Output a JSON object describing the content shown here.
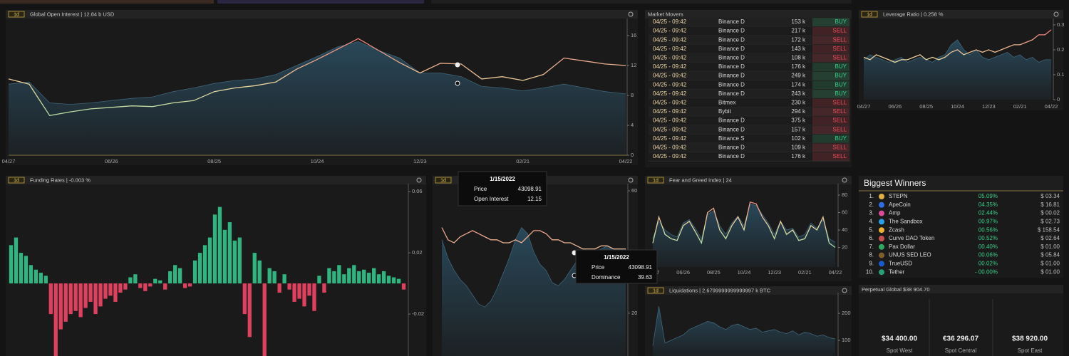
{
  "chart_data": [
    {
      "type": "line",
      "interval": "1d",
      "title": "Global Open Interest | 12.84 b USD",
      "categories": [
        "04/27",
        null,
        null,
        null,
        null,
        "06/26",
        null,
        null,
        null,
        null,
        "08/25",
        null,
        null,
        null,
        null,
        "10/24",
        null,
        null,
        null,
        null,
        "12/23",
        null,
        null,
        null,
        null,
        "02/21",
        null,
        null,
        null,
        null,
        "04/22"
      ],
      "series": [
        {
          "kind": "area",
          "color": "#2a4a5c",
          "values": [
            9.5,
            9.8,
            7.0,
            6.8,
            7.0,
            7.3,
            7.6,
            7.8,
            8.5,
            9.0,
            9.6,
            10.0,
            10.2,
            10.8,
            12.0,
            13.2,
            14.5,
            15.2,
            14.0,
            13.0,
            11.0,
            11.0,
            10.5,
            9.2,
            9.0,
            8.6,
            9.0,
            9.5,
            9.0,
            8.5,
            8.2
          ]
        },
        {
          "kind": "line",
          "gradient": [
            "#f07a7a",
            "#e8d8a0",
            "#7fe0a4"
          ],
          "values": [
            10.2,
            9.5,
            5.3,
            5.8,
            6.2,
            6.4,
            6.6,
            6.5,
            7.0,
            7.3,
            8.5,
            9.0,
            9.3,
            9.8,
            11.5,
            12.8,
            14.2,
            15.6,
            14.0,
            12.4,
            11.0,
            12.3,
            12.2,
            10.2,
            10.5,
            10.0,
            10.8,
            13.0,
            12.6,
            12.2,
            12.0
          ]
        }
      ],
      "ylim": [
        0,
        17.9
      ],
      "yticks": [
        0,
        4,
        8,
        12,
        16
      ]
    },
    {
      "type": "line",
      "interval": "1d",
      "title": "Leverage Ratio | 0.258 %",
      "categories": [
        "04/27",
        null,
        null,
        null,
        null,
        "06/26",
        null,
        null,
        null,
        null,
        "08/25",
        null,
        null,
        null,
        null,
        "10/24",
        null,
        null,
        null,
        null,
        "12/23",
        null,
        null,
        null,
        null,
        "02/21",
        null,
        null,
        null,
        null,
        "04/22"
      ],
      "series": [
        {
          "kind": "area",
          "color": "#2a4a5c",
          "values": [
            0.16,
            0.18,
            0.17,
            0.16,
            0.15,
            0.16,
            0.17,
            0.15,
            0.16,
            0.17,
            0.16,
            0.15,
            0.17,
            0.18,
            0.22,
            0.24,
            0.2,
            0.18,
            0.2,
            0.17,
            0.16,
            0.17,
            0.18,
            0.19,
            0.17,
            0.18,
            0.16,
            0.17,
            0.15,
            0.16,
            0.16
          ]
        },
        {
          "kind": "line",
          "gradient": [
            "#f07a7a",
            "#e8d8a0",
            "#7fe0a4"
          ],
          "values": [
            0.17,
            0.16,
            0.18,
            0.17,
            0.16,
            0.15,
            0.16,
            0.16,
            0.17,
            0.18,
            0.16,
            0.17,
            0.16,
            0.17,
            0.19,
            0.2,
            0.18,
            0.19,
            0.2,
            0.19,
            0.2,
            0.19,
            0.2,
            0.21,
            0.22,
            0.22,
            0.23,
            0.24,
            0.26,
            0.26,
            0.28
          ]
        }
      ],
      "ylim": [
        0,
        0.314
      ],
      "yticks": [
        0,
        0.1,
        0.2,
        0.3
      ]
    },
    {
      "type": "bar",
      "interval": "1d",
      "title": "Funding Rates | -0.003 %",
      "color": "#2fb57f",
      "negative_color": "#e0405e",
      "values": [
        0.025,
        0.03,
        0.02,
        0.018,
        0.012,
        0.009,
        0.007,
        0.005,
        -0.02,
        -0.055,
        -0.03,
        -0.025,
        -0.02,
        -0.018,
        -0.022,
        -0.016,
        -0.012,
        -0.02,
        -0.015,
        -0.01,
        -0.008,
        -0.012,
        -0.006,
        -0.004,
        0.004,
        0.006,
        -0.003,
        -0.005,
        -0.002,
        0.003,
        0.002,
        -0.004,
        0.008,
        0.012,
        0.01,
        -0.003,
        -0.002,
        0.015,
        0.02,
        0.025,
        0.03,
        0.045,
        0.05,
        0.035,
        0.04,
        0.028,
        0.03,
        -0.02,
        -0.035,
        0.02,
        0.015,
        -0.05,
        0.01,
        0.008,
        -0.006,
        0.006,
        -0.004,
        -0.012,
        -0.01,
        -0.015,
        -0.008,
        -0.018,
        0.005,
        -0.006,
        0.01,
        0.008,
        0.012,
        0.006,
        0.01,
        0.012,
        0.008,
        0.009,
        0.007,
        0.01,
        0.006,
        0.008,
        0.005,
        0.004,
        0.003,
        -0.004
      ],
      "ylim": [
        -0.0474,
        0.0633
      ],
      "yticks": [
        -0.02,
        0.02,
        0.06
      ]
    },
    {
      "type": "line",
      "interval": "1d",
      "series": [
        {
          "kind": "area",
          "color": "#2a4a5c",
          "values": [
            44,
            38,
            34,
            31,
            29,
            26,
            23,
            22,
            24,
            28,
            33,
            38,
            44,
            48,
            46,
            40,
            36,
            34,
            30,
            29,
            31,
            34,
            37,
            38,
            40,
            40,
            41,
            42,
            41,
            41,
            41
          ]
        },
        {
          "kind": "line",
          "gradient": [
            "#f07a7a",
            "#e8d8a0",
            "#7fe0a4"
          ],
          "values": [
            48,
            44,
            43,
            45,
            46,
            47,
            46,
            45,
            44,
            44,
            43,
            43,
            44,
            43,
            45,
            47,
            47,
            46,
            44,
            44,
            43,
            43,
            42,
            41,
            41,
            41,
            42,
            42,
            41,
            41,
            41
          ]
        }
      ],
      "ylim": [
        6,
        61.4
      ],
      "yticks": [
        20,
        60
      ]
    },
    {
      "type": "line",
      "interval": "1d",
      "title": "Fear and Greed Index | 24",
      "categories": [
        "04/27",
        null,
        null,
        null,
        null,
        "06/26",
        null,
        null,
        null,
        null,
        "08/25",
        null,
        null,
        null,
        null,
        "10/24",
        null,
        null,
        null,
        null,
        "12/23",
        null,
        null,
        null,
        null,
        "02/21",
        null,
        null,
        null,
        null,
        "04/22"
      ],
      "series": [
        {
          "kind": "area",
          "color": "#2a4a5c",
          "values": [
            30,
            50,
            40,
            35,
            32,
            48,
            52,
            42,
            30,
            58,
            62,
            45,
            35,
            48,
            56,
            45,
            70,
            68,
            58,
            48,
            35,
            50,
            40,
            42,
            32,
            35,
            48,
            42,
            52,
            30,
            26
          ]
        },
        {
          "kind": "line",
          "gradient": [
            "#f07a7a",
            "#e8d8a0",
            "#7fe0a4"
          ],
          "values": [
            25,
            55,
            35,
            30,
            28,
            45,
            50,
            38,
            25,
            60,
            65,
            40,
            30,
            45,
            55,
            40,
            72,
            70,
            55,
            45,
            30,
            50,
            35,
            40,
            28,
            30,
            45,
            40,
            55,
            25,
            20
          ]
        }
      ],
      "ylim": [
        -2.4,
        89.8
      ],
      "yticks": [
        20,
        40,
        60,
        80
      ]
    },
    {
      "type": "line",
      "interval": "1d",
      "title": "Liquidations | 2.6799999999999997 k BTC",
      "series": [
        {
          "kind": "area",
          "color": "#2a4a5c",
          "values": [
            80,
            226,
            90,
            100,
            110,
            120,
            140,
            150,
            160,
            170,
            165,
            150,
            140,
            155,
            160,
            150,
            140,
            145,
            130,
            135,
            140,
            130,
            125,
            135,
            120,
            130,
            125,
            115,
            120,
            110,
            105
          ]
        }
      ],
      "ylim": [
        42,
        266
      ],
      "yticks": [
        100,
        200
      ]
    }
  ],
  "market_movers": {
    "title": "Market Movers",
    "rows": [
      {
        "time": "04/25 - 09:42",
        "exchange": "Binance D",
        "amount": "153 k",
        "side": "BUY",
        "color": "#3cd08a"
      },
      {
        "time": "04/25 - 09:42",
        "exchange": "Binance D",
        "amount": "217 k",
        "side": "SELL",
        "color": "#f04a5a"
      },
      {
        "time": "04/25 - 09:42",
        "exchange": "Binance D",
        "amount": "172 k",
        "side": "SELL",
        "color": "#f04a5a"
      },
      {
        "time": "04/25 - 09:42",
        "exchange": "Binance D",
        "amount": "143 k",
        "side": "SELL",
        "color": "#f04a5a"
      },
      {
        "time": "04/25 - 09:42",
        "exchange": "Binance D",
        "amount": "108 k",
        "side": "SELL",
        "color": "#f04a5a"
      },
      {
        "time": "04/25 - 09:42",
        "exchange": "Binance D",
        "amount": "176 k",
        "side": "BUY",
        "color": "#3cd08a"
      },
      {
        "time": "04/25 - 09:42",
        "exchange": "Binance D",
        "amount": "249 k",
        "side": "BUY",
        "color": "#3cd08a"
      },
      {
        "time": "04/25 - 09:42",
        "exchange": "Binance D",
        "amount": "174 k",
        "side": "BUY",
        "color": "#3cd08a"
      },
      {
        "time": "04/25 - 09:42",
        "exchange": "Binance D",
        "amount": "243 k",
        "side": "BUY",
        "color": "#3cd08a"
      },
      {
        "time": "04/25 - 09:42",
        "exchange": "Bitmex",
        "amount": "230 k",
        "side": "SELL",
        "color": "#f04a5a"
      },
      {
        "time": "04/25 - 09:42",
        "exchange": "Bybit",
        "amount": "294 k",
        "side": "SELL",
        "color": "#f04a5a"
      },
      {
        "time": "04/25 - 09:42",
        "exchange": "Binance D",
        "amount": "375 k",
        "side": "SELL",
        "color": "#f04a5a"
      },
      {
        "time": "04/25 - 09:42",
        "exchange": "Binance D",
        "amount": "157 k",
        "side": "SELL",
        "color": "#f04a5a"
      },
      {
        "time": "04/25 - 09:42",
        "exchange": "Binance S",
        "amount": "102 k",
        "side": "BUY",
        "color": "#3cd08a"
      },
      {
        "time": "04/25 - 09:42",
        "exchange": "Binance D",
        "amount": "109 k",
        "side": "SELL",
        "color": "#f04a5a"
      },
      {
        "time": "04/25 - 09:42",
        "exchange": "Binance D",
        "amount": "176 k",
        "side": "SELL",
        "color": "#f04a5a"
      }
    ]
  },
  "biggest_winners": {
    "title": "Biggest Winners",
    "change_color": "#3cd08a",
    "rows": [
      {
        "rank": "1.",
        "name": "STEPN",
        "change": "05.09%",
        "price": "$ 03.34",
        "icon_color": "#e0b040"
      },
      {
        "rank": "2.",
        "name": "ApeCoin",
        "change": "04.35%",
        "price": "$ 16.81",
        "icon_color": "#2f6fe0"
      },
      {
        "rank": "3.",
        "name": "Amp",
        "change": "02.44%",
        "price": "$ 00.02",
        "icon_color": "#e04a9a"
      },
      {
        "rank": "4.",
        "name": "The Sandbox",
        "change": "00.97%",
        "price": "$ 02.73",
        "icon_color": "#2aa0e8"
      },
      {
        "rank": "5.",
        "name": "Zcash",
        "change": "00.56%",
        "price": "$ 158.54",
        "icon_color": "#f0b030"
      },
      {
        "rank": "6.",
        "name": "Curve DAO Token",
        "change": "00.52%",
        "price": "$ 02.64",
        "icon_color": "#c85050"
      },
      {
        "rank": "7.",
        "name": "Pax Dollar",
        "change": "00.40%",
        "price": "$ 01.00",
        "icon_color": "#2fa860"
      },
      {
        "rank": "8.",
        "name": "UNUS SED LEO",
        "change": "00.06%",
        "price": "$ 05.84",
        "icon_color": "#806030"
      },
      {
        "rank": "9.",
        "name": "TrueUSD",
        "change": "00.02%",
        "price": "$ 01.00",
        "icon_color": "#1a5ad0"
      },
      {
        "rank": "10.",
        "name": "Tether",
        "change": "- 00.00%",
        "price": "$ 01.00",
        "icon_color": "#27a17a"
      }
    ]
  },
  "perpetual_global": {
    "title": "Perpetual Global $38 904.70",
    "spots": [
      {
        "price": "$34 400.00",
        "label": "Spot West"
      },
      {
        "price": "€36 296.07",
        "label": "Spot Central"
      },
      {
        "price": "$38 920.00",
        "label": "Spot East"
      }
    ]
  },
  "tooltips": [
    {
      "date": "1/15/2022",
      "rows": [
        [
          "Price",
          "43098.91"
        ],
        [
          "Open Interest",
          "12.15"
        ]
      ]
    },
    {
      "date": "1/15/2022",
      "rows": [
        [
          "Price",
          "43098.91"
        ],
        [
          "Dominance",
          "39.63"
        ]
      ]
    }
  ]
}
